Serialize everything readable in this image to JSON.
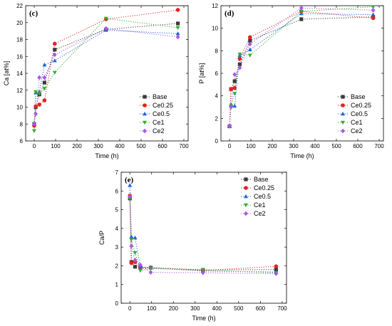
{
  "colors": {
    "Base": "#3a3a3a",
    "Ce0.25": "#e8211f",
    "Ce0.5": "#1f63d8",
    "Ce1": "#2fae2f",
    "Ce2": "#a757e8"
  },
  "chart_data": [
    {
      "type": "line",
      "panel_label": "(c)",
      "xlabel": "Time (h)",
      "ylabel": "Ca [at%]",
      "xlim": [
        -40,
        720
      ],
      "ylim": [
        6,
        22
      ],
      "xticks": [
        0,
        100,
        200,
        300,
        400,
        500,
        600,
        700
      ],
      "yticks": [
        6,
        8,
        10,
        12,
        14,
        16,
        18,
        20,
        22
      ],
      "legend": "right-middle",
      "series": [
        {
          "name": "Base",
          "marker": "square",
          "x": [
            0,
            7,
            24,
            48,
            96,
            336,
            672
          ],
          "y": [
            8.0,
            10.0,
            11.5,
            12.9,
            16.8,
            19.2,
            19.9
          ]
        },
        {
          "name": "Ce0.25",
          "marker": "circle",
          "x": [
            0,
            7,
            24,
            48,
            96,
            336,
            672
          ],
          "y": [
            7.8,
            10.1,
            10.3,
            10.8,
            17.5,
            20.4,
            21.5
          ]
        },
        {
          "name": "Ce0.5",
          "marker": "triangle-up",
          "x": [
            0,
            7,
            24,
            48,
            96,
            336,
            672
          ],
          "y": [
            8.0,
            11.7,
            11.8,
            15.0,
            15.5,
            19.1,
            18.7
          ]
        },
        {
          "name": "Ce1",
          "marker": "triangle-down",
          "x": [
            0,
            7,
            24,
            48,
            96,
            336,
            672
          ],
          "y": [
            7.2,
            11.8,
            11.6,
            12.2,
            14.1,
            20.5,
            19.4
          ]
        },
        {
          "name": "Ce2",
          "marker": "diamond",
          "x": [
            0,
            7,
            24,
            48,
            96,
            336,
            672
          ],
          "y": [
            8.0,
            9.2,
            13.5,
            13.5,
            16.2,
            19.3,
            18.3
          ]
        }
      ]
    },
    {
      "type": "line",
      "panel_label": "(d)",
      "xlabel": "Time (h)",
      "ylabel": "P [at%]",
      "xlim": [
        -40,
        720
      ],
      "ylim": [
        0,
        12
      ],
      "xticks": [
        0,
        100,
        200,
        300,
        400,
        500,
        600,
        700
      ],
      "yticks": [
        0,
        2,
        4,
        6,
        8,
        10,
        12
      ],
      "legend": "right-middle",
      "series": [
        {
          "name": "Base",
          "marker": "square",
          "x": [
            0,
            7,
            24,
            48,
            96,
            336,
            672
          ],
          "y": [
            1.3,
            4.6,
            5.3,
            6.8,
            8.9,
            10.8,
            11.0
          ]
        },
        {
          "name": "Ce0.25",
          "marker": "circle",
          "x": [
            0,
            7,
            24,
            48,
            96,
            336,
            672
          ],
          "y": [
            1.3,
            4.6,
            4.7,
            7.3,
            9.2,
            11.5,
            10.9
          ]
        },
        {
          "name": "Ce0.5",
          "marker": "triangle-up",
          "x": [
            0,
            7,
            24,
            48,
            96,
            336,
            672
          ],
          "y": [
            1.3,
            3.2,
            3.1,
            7.6,
            8.1,
            11.3,
            11.2
          ]
        },
        {
          "name": "Ce1",
          "marker": "triangle-down",
          "x": [
            0,
            7,
            24,
            48,
            96,
            336,
            672
          ],
          "y": [
            1.3,
            3.1,
            4.2,
            7.7,
            7.6,
            11.5,
            11.9
          ]
        },
        {
          "name": "Ce2",
          "marker": "diamond",
          "x": [
            0,
            7,
            24,
            48,
            96,
            336,
            672
          ],
          "y": [
            1.3,
            3.0,
            5.9,
            6.5,
            8.6,
            11.8,
            11.6
          ]
        }
      ]
    },
    {
      "type": "line",
      "panel_label": "(e)",
      "xlabel": "Time (h)",
      "ylabel": "Ca/P",
      "xlim": [
        -40,
        720
      ],
      "ylim": [
        0,
        7
      ],
      "xticks": [
        0,
        100,
        200,
        300,
        400,
        500,
        600,
        700
      ],
      "yticks": [
        0,
        1,
        2,
        3,
        4,
        5,
        6,
        7
      ],
      "legend": "top-right",
      "series": [
        {
          "name": "Base",
          "marker": "square",
          "x": [
            0,
            7,
            24,
            48,
            96,
            336,
            672
          ],
          "y": [
            5.6,
            2.2,
            1.95,
            1.9,
            1.9,
            1.78,
            1.8
          ]
        },
        {
          "name": "Ce0.25",
          "marker": "circle",
          "x": [
            0,
            7,
            24,
            48,
            96,
            336,
            672
          ],
          "y": [
            5.75,
            2.15,
            2.2,
            1.85,
            1.9,
            1.75,
            1.97
          ]
        },
        {
          "name": "Ce0.5",
          "marker": "triangle-up",
          "x": [
            0,
            7,
            24,
            48,
            96,
            336,
            672
          ],
          "y": [
            6.3,
            3.55,
            3.5,
            1.95,
            1.9,
            1.72,
            1.67
          ]
        },
        {
          "name": "Ce1",
          "marker": "triangle-down",
          "x": [
            0,
            7,
            24,
            48,
            96,
            336,
            672
          ],
          "y": [
            5.6,
            3.4,
            2.7,
            1.75,
            1.85,
            1.78,
            1.62
          ]
        },
        {
          "name": "Ce2",
          "marker": "diamond",
          "x": [
            0,
            7,
            24,
            48,
            96,
            336,
            672
          ],
          "y": [
            5.7,
            3.05,
            2.3,
            2.05,
            1.65,
            1.63,
            1.58
          ]
        }
      ]
    }
  ]
}
